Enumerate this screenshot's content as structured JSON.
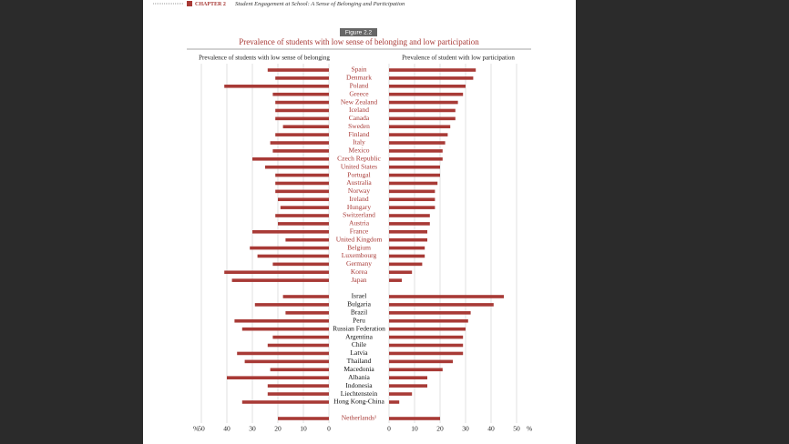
{
  "header": {
    "chapter": "CHAPTER 2",
    "title": "Student Engagement at School: A Sense of Belonging and Participation"
  },
  "chart_data": {
    "type": "bar",
    "figure_label": "Figure 2.2",
    "title": "Prevalence of students with low sense of belonging and low participation",
    "categories": [
      "Spain",
      "Denmark",
      "Poland",
      "Greece",
      "New Zealand",
      "Iceland",
      "Canada",
      "Sweden",
      "Finland",
      "Italy",
      "Mexico",
      "Czech Republic",
      "United States",
      "Portugal",
      "Australia",
      "Norway",
      "Ireland",
      "Hungary",
      "Switzerland",
      "Austria",
      "France",
      "United Kingdom",
      "Belgium",
      "Luxembourg",
      "Germany",
      "Korea",
      "Japan",
      "Israel",
      "Bulgaria",
      "Brazil",
      "Peru",
      "Russian Federation",
      "Argentina",
      "Chile",
      "Latvia",
      "Thailand",
      "Macedonia",
      "Albania",
      "Indonesia",
      "Liechtenstein",
      "Hong Kong-China",
      "Netherlands¹"
    ],
    "series": [
      {
        "name": "Prevalence of students with low sense of belonging",
        "color": "#a83a36",
        "values": [
          24,
          21,
          41,
          22,
          21,
          21,
          21,
          18,
          21,
          23,
          22,
          30,
          25,
          21,
          21,
          21,
          20,
          19,
          21,
          20,
          30,
          17,
          31,
          28,
          22,
          41,
          38,
          18,
          29,
          17,
          37,
          34,
          22,
          24,
          36,
          33,
          23,
          40,
          24,
          24,
          34,
          20
        ]
      },
      {
        "name": "Prevalence of student with low participation",
        "color": "#a83a36",
        "values": [
          34,
          33,
          30,
          29,
          27,
          26,
          26,
          24,
          23,
          22,
          21,
          21,
          20,
          20,
          19,
          18,
          18,
          18,
          16,
          16,
          15,
          15,
          14,
          14,
          13,
          9,
          5,
          45,
          41,
          32,
          31,
          30,
          29,
          29,
          29,
          25,
          21,
          15,
          15,
          9,
          4,
          20
        ]
      }
    ],
    "xlim": [
      0,
      50
    ],
    "xticks": [
      0,
      10,
      20,
      30,
      40,
      50
    ],
    "x_unit": "%",
    "grid": true
  }
}
